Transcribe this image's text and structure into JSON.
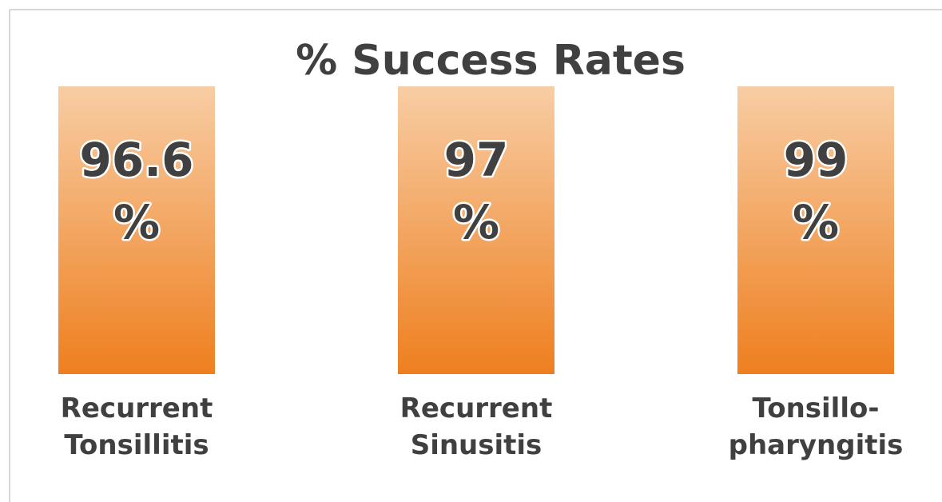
{
  "title": "% Success Rates",
  "cards": [
    {
      "value": 96.6,
      "unit": "%",
      "label": [
        "Recurrent",
        "Tonsillitis"
      ]
    },
    {
      "value": 97,
      "unit": "%",
      "label": [
        "Recurrent",
        "Sinusitis"
      ]
    },
    {
      "value": 99,
      "unit": "%",
      "label": [
        "Tonsillo-",
        "pharyngitis"
      ]
    }
  ]
}
